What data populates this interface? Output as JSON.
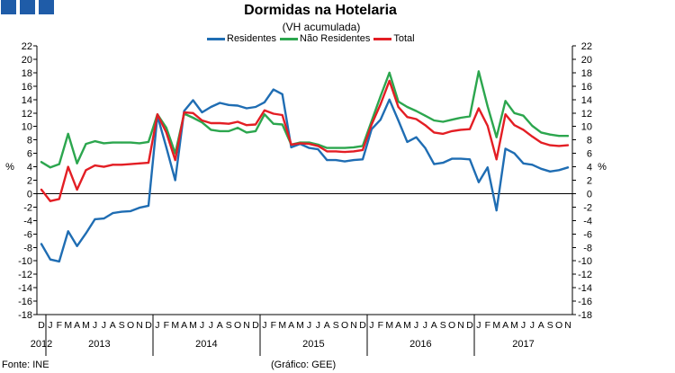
{
  "logo": {
    "color": "#1f5ca8"
  },
  "footer": {
    "source": "Fonte: INE",
    "credit": "(Gráfico: GEE)"
  },
  "chart_data": {
    "type": "line",
    "title": "Dormidas na Hotelaria",
    "subtitle": "(VH acumulada)",
    "xlabel": "",
    "ylabel": "%",
    "ylim": [
      -18,
      22
    ],
    "yticks": [
      -18,
      -16,
      -14,
      -12,
      -10,
      -8,
      -6,
      -4,
      -2,
      0,
      2,
      4,
      6,
      8,
      10,
      12,
      14,
      16,
      18,
      20,
      22
    ],
    "grid": false,
    "legend": "top-center",
    "months": [
      "D",
      "J",
      "F",
      "M",
      "A",
      "M",
      "J",
      "J",
      "A",
      "S",
      "O",
      "N",
      "D",
      "J",
      "F",
      "M",
      "A",
      "M",
      "J",
      "J",
      "A",
      "S",
      "O",
      "N",
      "D",
      "J",
      "F",
      "M",
      "A",
      "M",
      "J",
      "J",
      "A",
      "S",
      "O",
      "N",
      "D",
      "J",
      "F",
      "M",
      "A",
      "M",
      "J",
      "J",
      "A",
      "S",
      "O",
      "N",
      "D",
      "J",
      "F",
      "M",
      "A",
      "M",
      "J",
      "J",
      "A",
      "S",
      "O",
      "N"
    ],
    "years": [
      {
        "label": "2012",
        "months": 1
      },
      {
        "label": "2013",
        "months": 12
      },
      {
        "label": "2014",
        "months": 12
      },
      {
        "label": "2015",
        "months": 12
      },
      {
        "label": "2016",
        "months": 12
      },
      {
        "label": "2017",
        "months": 11
      }
    ],
    "series": [
      {
        "name": "Residentes",
        "color": "#1f6db3",
        "values": [
          -7.5,
          -9.8,
          -10.1,
          -5.6,
          -7.8,
          -5.9,
          -3.8,
          -3.7,
          -2.9,
          -2.7,
          -2.6,
          -2.1,
          -1.8,
          11.6,
          6.9,
          2.0,
          12.3,
          13.9,
          12.1,
          12.9,
          13.5,
          13.2,
          13.1,
          12.7,
          12.9,
          13.6,
          15.5,
          14.8,
          6.9,
          7.4,
          6.8,
          6.6,
          5.0,
          5.0,
          4.8,
          5.0,
          5.1,
          9.6,
          11.0,
          14.0,
          10.9,
          7.7,
          8.4,
          6.8,
          4.4,
          4.6,
          5.2,
          5.2,
          5.1,
          1.7,
          3.9,
          -2.5,
          6.7,
          6.0,
          4.5,
          4.3,
          3.7,
          3.3,
          3.5,
          3.9
        ]
      },
      {
        "name": "Não Residentes",
        "color": "#2ca64e",
        "values": [
          4.7,
          3.9,
          4.4,
          8.9,
          4.5,
          7.4,
          7.8,
          7.5,
          7.6,
          7.6,
          7.6,
          7.5,
          7.7,
          11.8,
          9.8,
          6.0,
          11.9,
          11.3,
          10.6,
          9.5,
          9.3,
          9.3,
          9.8,
          9.1,
          9.3,
          11.8,
          10.4,
          10.3,
          7.3,
          7.6,
          7.6,
          7.3,
          6.8,
          6.8,
          6.8,
          6.9,
          7.1,
          10.8,
          14.5,
          18.0,
          13.7,
          12.9,
          12.3,
          11.6,
          10.9,
          10.7,
          11.0,
          11.3,
          11.5,
          18.2,
          13.0,
          8.4,
          13.8,
          12.0,
          11.6,
          10.1,
          9.1,
          8.8,
          8.6,
          8.6
        ]
      },
      {
        "name": "Total",
        "color": "#e31e24",
        "values": [
          0.6,
          -1.1,
          -0.8,
          4.0,
          0.6,
          3.5,
          4.2,
          4.0,
          4.3,
          4.3,
          4.4,
          4.5,
          4.6,
          11.8,
          9.1,
          5.0,
          12.1,
          12.0,
          10.9,
          10.5,
          10.5,
          10.4,
          10.7,
          10.2,
          10.3,
          12.4,
          11.9,
          11.7,
          7.3,
          7.5,
          7.4,
          7.1,
          6.3,
          6.3,
          6.2,
          6.3,
          6.5,
          10.3,
          13.3,
          16.8,
          12.9,
          11.4,
          11.1,
          10.2,
          9.1,
          8.9,
          9.3,
          9.5,
          9.6,
          12.7,
          10.1,
          5.1,
          11.8,
          10.2,
          9.5,
          8.5,
          7.6,
          7.2,
          7.1,
          7.2
        ]
      }
    ]
  }
}
